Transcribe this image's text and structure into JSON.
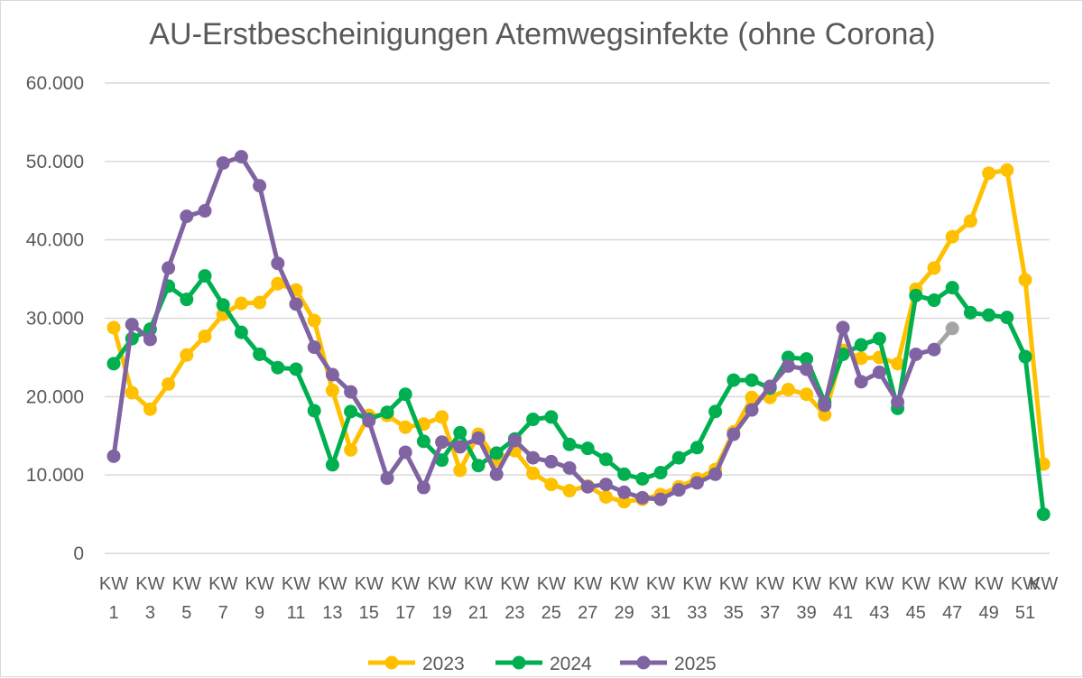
{
  "chart_data": {
    "type": "line",
    "title": "AU-Erstbescheinigungen Atemwegsinfekte (ohne Corona)",
    "xlabel": "",
    "ylabel": "",
    "ylim": [
      0,
      60000
    ],
    "yticks": [
      0,
      10000,
      20000,
      30000,
      40000,
      50000,
      60000
    ],
    "ytick_labels": [
      "0",
      "10.000",
      "20.000",
      "30.000",
      "40.000",
      "50.000",
      "60.000"
    ],
    "x": [
      1,
      2,
      3,
      4,
      5,
      6,
      7,
      8,
      9,
      10,
      11,
      12,
      13,
      14,
      15,
      16,
      17,
      18,
      19,
      20,
      21,
      22,
      23,
      24,
      25,
      26,
      27,
      28,
      29,
      30,
      31,
      32,
      33,
      34,
      35,
      36,
      37,
      38,
      39,
      40,
      41,
      42,
      43,
      44,
      45,
      46,
      47,
      48,
      49,
      50,
      51,
      52
    ],
    "xtick_label_prefix": "KW",
    "xtick_labels": [
      "1",
      "3",
      "5",
      "7",
      "9",
      "11",
      "13",
      "15",
      "17",
      "19",
      "21",
      "23",
      "25",
      "27",
      "29",
      "31",
      "33",
      "35",
      "37",
      "39",
      "41",
      "43",
      "45",
      "47",
      "49",
      "51"
    ],
    "legend_position": "bottom",
    "grid": true,
    "series": [
      {
        "name": "2023",
        "color": "#FFC000",
        "values": [
          28800,
          20500,
          18400,
          21600,
          25300,
          27700,
          30500,
          31900,
          32000,
          34400,
          33600,
          29700,
          20800,
          13200,
          17600,
          17600,
          16100,
          16500,
          17400,
          10600,
          15200,
          11900,
          13100,
          10200,
          8800,
          8000,
          8600,
          7200,
          6600,
          6900,
          7500,
          8500,
          9500,
          10700,
          15500,
          19900,
          19900,
          20900,
          20300,
          17700,
          25900,
          24900,
          25000,
          24200,
          33700,
          36400,
          40400,
          42400,
          48500,
          48900,
          34900,
          11400
        ]
      },
      {
        "name": "2024",
        "color": "#00B050",
        "values": [
          24200,
          27400,
          28600,
          34100,
          32400,
          35400,
          31700,
          28200,
          25400,
          23700,
          23500,
          18200,
          11300,
          18100,
          17100,
          18000,
          20300,
          14300,
          11900,
          15400,
          11200,
          12800,
          14600,
          17100,
          17400,
          13900,
          13400,
          12000,
          10100,
          9500,
          10300,
          12200,
          13500,
          18100,
          22100,
          22100,
          21100,
          25000,
          24800,
          19300,
          25400,
          26600,
          27400,
          18500,
          32900,
          32300,
          33900,
          30700,
          30400,
          30100,
          25100,
          5000
        ]
      },
      {
        "name": "2025",
        "color": "#8064A2",
        "values": [
          12400,
          29200,
          27300,
          36400,
          43000,
          43700,
          49800,
          50600,
          46900,
          37000,
          31800,
          26300,
          22800,
          20600,
          16900,
          9600,
          12900,
          8400,
          14200,
          13600,
          14700,
          10100,
          14400,
          12200,
          11700,
          10900,
          8500,
          8800,
          7800,
          7100,
          6900,
          8100,
          9000,
          10100,
          15200,
          18300,
          21300,
          23900,
          23500,
          18900,
          28800,
          21900,
          23100,
          19300,
          25400,
          26000,
          28700,
          null,
          null,
          null,
          null,
          null
        ],
        "last_value_color": "#A5A5A5"
      }
    ]
  }
}
